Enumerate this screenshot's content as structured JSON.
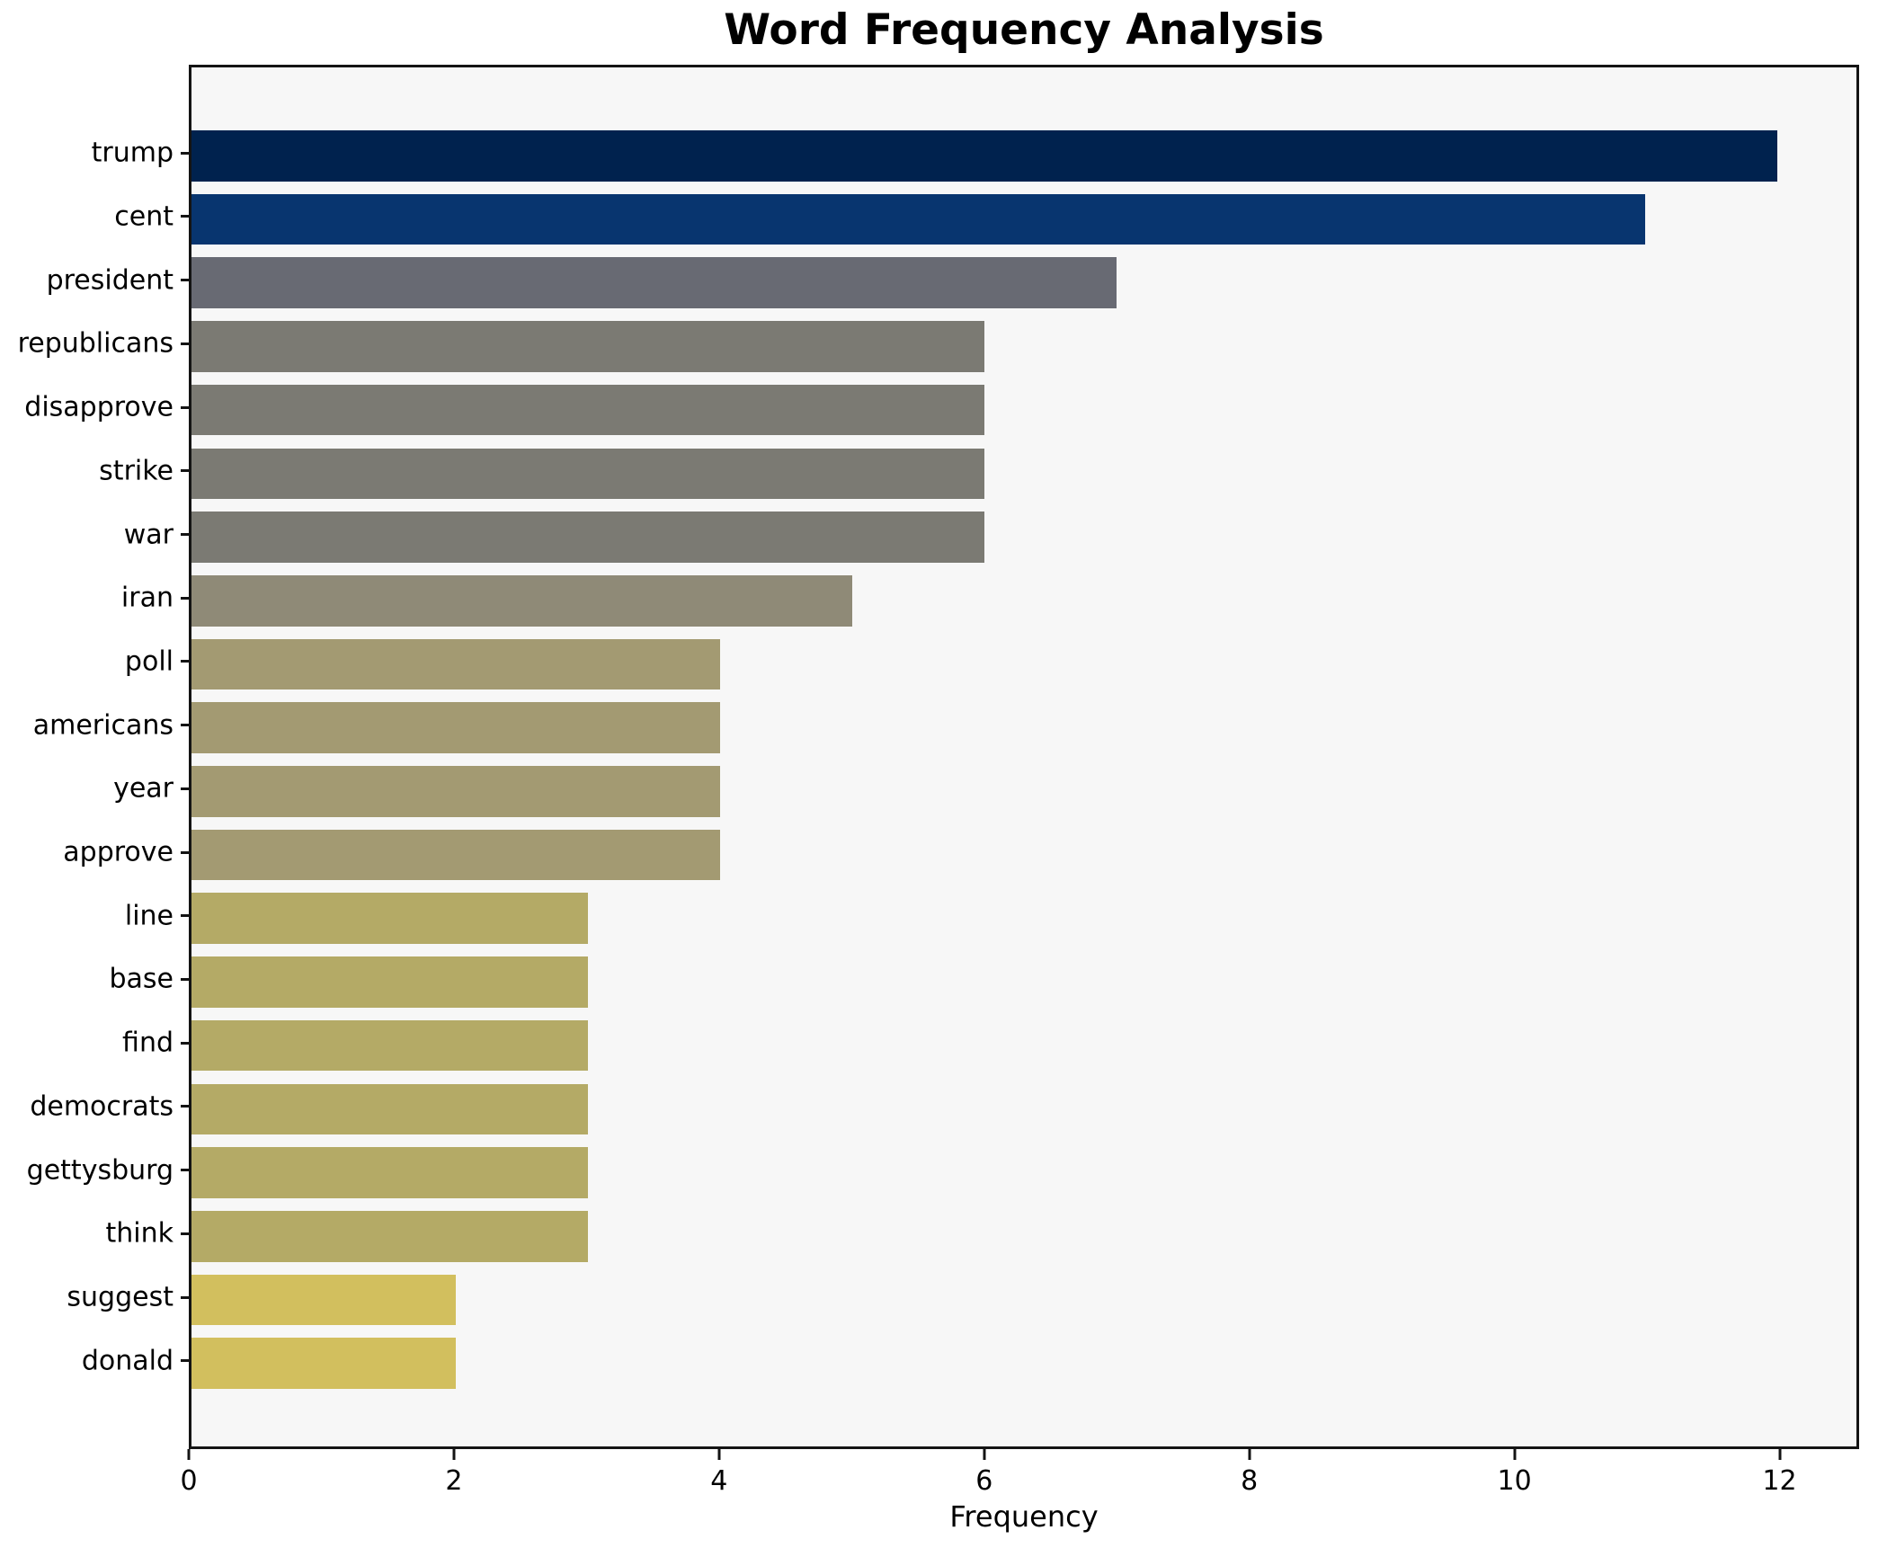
{
  "title": "Word Frequency Analysis",
  "chart_data": {
    "type": "bar",
    "orientation": "horizontal",
    "title": "Word Frequency Analysis",
    "xlabel": "Frequency",
    "ylabel": "",
    "categories": [
      "trump",
      "cent",
      "president",
      "republicans",
      "disapprove",
      "strike",
      "war",
      "iran",
      "poll",
      "americans",
      "year",
      "approve",
      "line",
      "base",
      "find",
      "democrats",
      "gettysburg",
      "think",
      "suggest",
      "donald"
    ],
    "values": [
      12,
      11,
      7,
      6,
      6,
      6,
      6,
      5,
      4,
      4,
      4,
      4,
      3,
      3,
      3,
      3,
      3,
      3,
      2,
      2
    ],
    "bar_colors": [
      "#00224e",
      "#08356f",
      "#686a73",
      "#7b7a73",
      "#7b7a73",
      "#7b7a73",
      "#7b7a73",
      "#8f8a77",
      "#a39a72",
      "#a39a72",
      "#a39a72",
      "#a39a72",
      "#b4aa66",
      "#b4aa66",
      "#b4aa66",
      "#b4aa66",
      "#b4aa66",
      "#b4aa66",
      "#d2bf5e",
      "#d2bf5e"
    ],
    "xlim": [
      0,
      12.6
    ],
    "x_ticks": [
      0,
      2,
      4,
      6,
      8,
      10,
      12
    ],
    "bar_height_units": 0.8,
    "y_range_units": 21.78,
    "y_first_center_units": 1.39,
    "grid": false,
    "legend": "none",
    "plot_background": "#f7f7f7",
    "figure_background": "#ffffff",
    "spine_color": "#141414"
  }
}
